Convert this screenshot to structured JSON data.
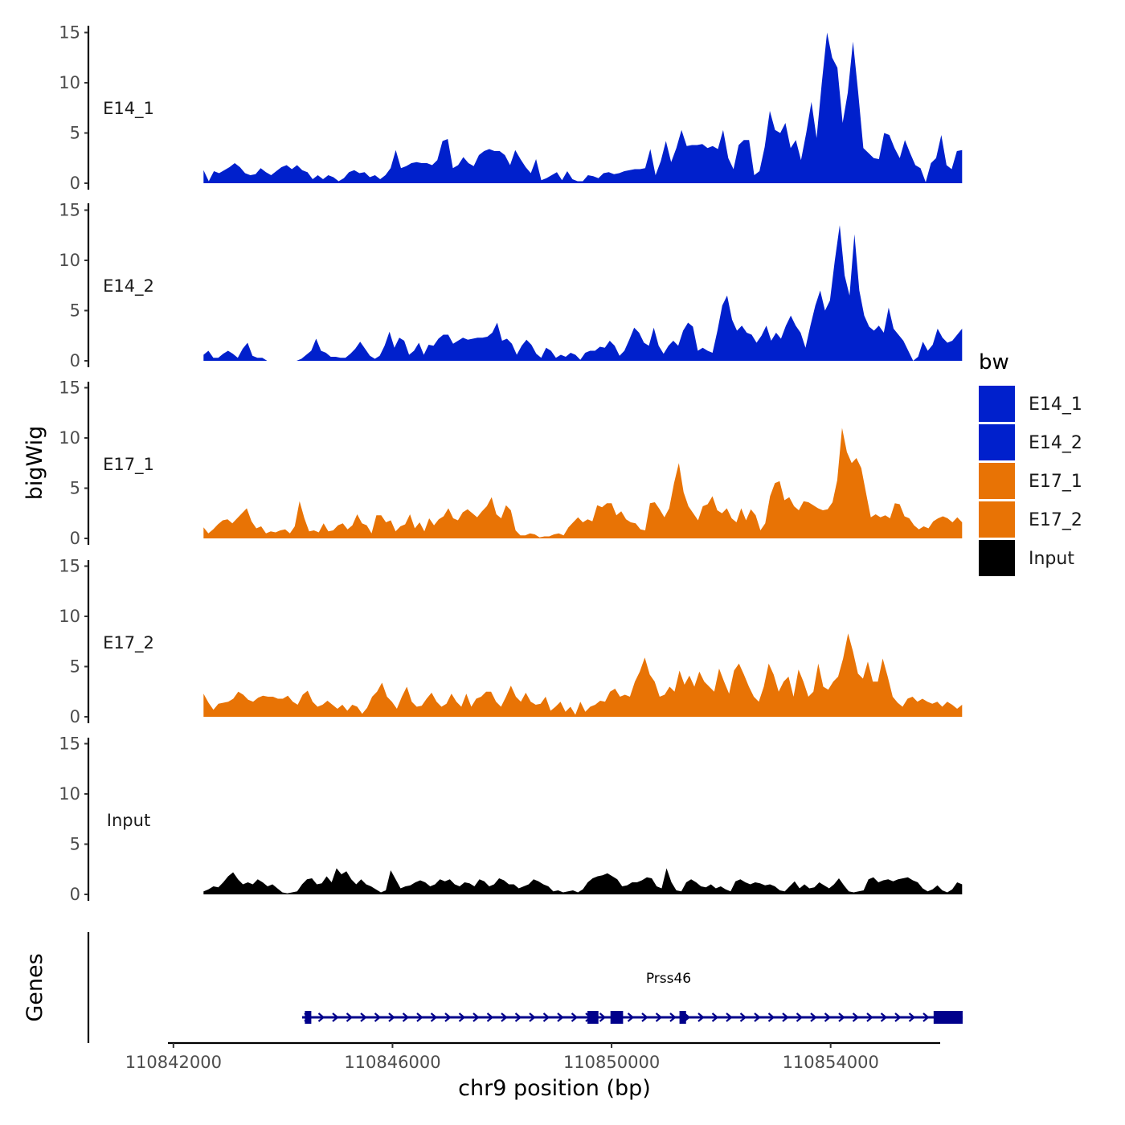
{
  "chart_data": {
    "type": "area",
    "title": "",
    "xlabel": "chr9 position (bp)",
    "ylabel": "bigWig",
    "gene_track_label": "Genes",
    "xlim": [
      110841900,
      110856000
    ],
    "data_range": [
      110842550,
      110856400
    ],
    "ylim": [
      0,
      15
    ],
    "yticks": [
      0,
      5,
      10,
      15
    ],
    "xticks": [
      110842000,
      110846000,
      110850000,
      110854000
    ],
    "legend": {
      "title": "bw",
      "position": "right",
      "entries": [
        {
          "name": "E14_1",
          "color": "#0020CC"
        },
        {
          "name": "E14_2",
          "color": "#0020CC"
        },
        {
          "name": "E17_1",
          "color": "#E87305"
        },
        {
          "name": "E17_2",
          "color": "#E87305"
        },
        {
          "name": "Input",
          "color": "#000000"
        }
      ]
    },
    "series": [
      {
        "name": "E14_1",
        "color": "#0020CC",
        "values": [
          1.3,
          0.2,
          1.2,
          1.0,
          1.3,
          1.6,
          2.0,
          1.6,
          1.0,
          0.8,
          0.9,
          1.5,
          1.1,
          0.8,
          1.2,
          1.6,
          1.8,
          1.4,
          1.8,
          1.3,
          1.1,
          0.4,
          0.8,
          0.4,
          0.8,
          0.6,
          0.2,
          0.5,
          1.1,
          1.3,
          1.0,
          1.1,
          0.6,
          0.8,
          0.4,
          0.8,
          1.5,
          3.3,
          1.5,
          1.7,
          2.0,
          2.1,
          2.0,
          2.0,
          1.8,
          2.3,
          4.2,
          4.4,
          1.5,
          1.8,
          2.6,
          2.0,
          1.7,
          2.8,
          3.2,
          3.4,
          3.2,
          3.2,
          2.8,
          1.8,
          3.3,
          2.4,
          1.6,
          1.0,
          2.4,
          0.3,
          0.5,
          0.8,
          1.1,
          0.3,
          1.2,
          0.4,
          0.2,
          0.2,
          0.8,
          0.7,
          0.5,
          1.0,
          1.1,
          0.9,
          1.0,
          1.2,
          1.3,
          1.4,
          1.4,
          1.5,
          3.4,
          0.8,
          2.2,
          4.2,
          2.1,
          3.5,
          5.3,
          3.7,
          3.8,
          3.8,
          3.9,
          3.5,
          3.7,
          3.4,
          5.3,
          2.5,
          1.4,
          3.8,
          4.3,
          4.3,
          0.8,
          1.2,
          3.6,
          7.2,
          5.3,
          5.0,
          6.0,
          3.5,
          4.3,
          2.3,
          5.0,
          8.1,
          4.5,
          10.0,
          15.0,
          12.5,
          11.5,
          6.0,
          9.0,
          14.1,
          9.0,
          3.5,
          3.0,
          2.5,
          2.4,
          5.0,
          4.8,
          3.5,
          2.5,
          4.3,
          3.0,
          1.8,
          1.5,
          0.1,
          2.0,
          2.5,
          4.8,
          1.8,
          1.4,
          3.2,
          3.3
        ]
      },
      {
        "name": "E14_2",
        "color": "#0020CC",
        "values": [
          0.6,
          1.0,
          0.3,
          0.3,
          0.7,
          1.0,
          0.7,
          0.3,
          1.2,
          1.8,
          0.5,
          0.3,
          0.3,
          0,
          0,
          0,
          0,
          0,
          0,
          0,
          0.2,
          0.6,
          1.0,
          2.2,
          1.0,
          0.8,
          0.4,
          0.4,
          0.3,
          0.3,
          0.7,
          1.2,
          1.9,
          1.2,
          0.5,
          0.2,
          0.5,
          1.5,
          2.9,
          1.3,
          2.3,
          2.0,
          0.6,
          1.0,
          1.8,
          0.6,
          1.6,
          1.5,
          2.2,
          2.6,
          2.6,
          1.7,
          2.0,
          2.3,
          2.1,
          2.2,
          2.3,
          2.3,
          2.4,
          2.8,
          3.8,
          2.0,
          2.2,
          1.7,
          0.6,
          1.5,
          2.1,
          1.6,
          0.7,
          0.3,
          1.3,
          1.0,
          0.3,
          0.6,
          0.4,
          0.8,
          0.6,
          0.1,
          0.8,
          1.0,
          1.0,
          1.4,
          1.3,
          2.0,
          1.5,
          0.5,
          1.0,
          2.1,
          3.3,
          2.8,
          1.8,
          1.5,
          3.3,
          1.5,
          0.7,
          1.5,
          2.0,
          1.5,
          3.0,
          3.8,
          3.4,
          1.0,
          1.3,
          1.0,
          0.8,
          3.0,
          5.5,
          6.5,
          4.1,
          3.0,
          3.5,
          2.8,
          2.6,
          1.8,
          2.5,
          3.5,
          2.0,
          2.8,
          2.2,
          3.5,
          4.5,
          3.5,
          2.8,
          1.3,
          3.5,
          5.5,
          7.0,
          5.0,
          6.0,
          10.0,
          13.5,
          8.5,
          6.5,
          12.6,
          7.0,
          4.5,
          3.4,
          3.0,
          3.5,
          2.8,
          5.3,
          3.2,
          2.6,
          2.0,
          1.0,
          0,
          0.4,
          1.9,
          1.0,
          1.6,
          3.2,
          2.3,
          1.8,
          2.0,
          2.6,
          3.2
        ]
      },
      {
        "name": "E17_1",
        "color": "#E87305",
        "values": [
          1.1,
          0.5,
          0.9,
          1.4,
          1.8,
          1.9,
          1.5,
          2.0,
          2.5,
          3.0,
          1.7,
          1.0,
          1.2,
          0.5,
          0.7,
          0.6,
          0.8,
          0.9,
          0.5,
          1.2,
          3.7,
          2.0,
          0.7,
          0.8,
          0.6,
          1.5,
          0.7,
          0.8,
          1.3,
          1.5,
          0.9,
          1.3,
          2.4,
          1.5,
          1.3,
          0.5,
          2.3,
          2.3,
          1.6,
          1.8,
          0.7,
          1.2,
          1.4,
          2.4,
          1.0,
          1.6,
          0.7,
          2.0,
          1.3,
          1.9,
          2.2,
          3.0,
          2.0,
          1.8,
          2.6,
          2.9,
          2.5,
          2.1,
          2.7,
          3.2,
          4.1,
          2.4,
          2.0,
          3.3,
          2.8,
          0.8,
          0.3,
          0.3,
          0.5,
          0.4,
          0.1,
          0.2,
          0.2,
          0.4,
          0.5,
          0.3,
          1.1,
          1.6,
          2.1,
          1.6,
          1.9,
          1.7,
          3.3,
          3.1,
          3.5,
          3.5,
          2.3,
          2.7,
          1.9,
          1.6,
          1.5,
          0.9,
          0.8,
          3.5,
          3.6,
          2.9,
          2.1,
          3.0,
          5.5,
          7.5,
          4.6,
          3.2,
          2.5,
          1.8,
          3.2,
          3.4,
          4.2,
          2.8,
          2.5,
          3.0,
          2.0,
          1.6,
          3.0,
          1.8,
          2.9,
          2.3,
          0.8,
          1.5,
          4.2,
          5.5,
          5.7,
          3.8,
          4.1,
          3.2,
          2.8,
          3.7,
          3.6,
          3.3,
          3.0,
          2.8,
          2.9,
          3.6,
          5.8,
          11.0,
          8.6,
          7.5,
          8.0,
          7.0,
          4.5,
          2.1,
          2.4,
          2.1,
          2.3,
          2.0,
          3.5,
          3.4,
          2.2,
          2.0,
          1.3,
          0.9,
          1.2,
          1.0,
          1.7,
          2.0,
          2.2,
          2.0,
          1.6,
          2.1,
          1.6
        ]
      },
      {
        "name": "E17_2",
        "color": "#E87305",
        "values": [
          2.3,
          1.4,
          0.7,
          1.3,
          1.4,
          1.5,
          1.8,
          2.5,
          2.2,
          1.7,
          1.5,
          1.9,
          2.1,
          2.0,
          2.0,
          1.8,
          1.8,
          2.1,
          1.5,
          1.2,
          2.2,
          2.6,
          1.5,
          1.0,
          1.2,
          1.6,
          1.2,
          0.8,
          1.2,
          0.6,
          1.2,
          1.0,
          0.3,
          0.9,
          2.0,
          2.5,
          3.4,
          2.0,
          1.5,
          0.8,
          2.0,
          3.0,
          1.5,
          1.0,
          1.1,
          1.8,
          2.4,
          1.5,
          1.0,
          1.3,
          2.3,
          1.5,
          1.0,
          2.3,
          1.0,
          1.8,
          2.0,
          2.5,
          2.5,
          1.5,
          1.0,
          2.0,
          3.1,
          2.0,
          1.5,
          2.4,
          1.5,
          1.2,
          1.3,
          2.0,
          0.6,
          1.0,
          1.5,
          0.5,
          1.0,
          0.2,
          1.5,
          0.5,
          1.0,
          1.2,
          1.6,
          1.5,
          2.5,
          2.8,
          2.0,
          2.2,
          2.0,
          3.5,
          4.5,
          5.9,
          4.2,
          3.5,
          2.0,
          2.2,
          3.0,
          2.5,
          4.6,
          3.2,
          4.1,
          3.0,
          4.5,
          3.5,
          3.0,
          2.5,
          4.8,
          3.5,
          2.3,
          4.6,
          5.3,
          4.2,
          3.0,
          2.0,
          1.5,
          3.0,
          5.3,
          4.2,
          2.5,
          3.5,
          4.0,
          2.0,
          4.7,
          3.5,
          2.0,
          2.5,
          5.3,
          3.0,
          2.7,
          3.5,
          4.0,
          5.8,
          8.3,
          6.5,
          4.3,
          3.8,
          5.5,
          3.5,
          3.5,
          5.8,
          4.0,
          2.0,
          1.4,
          1.0,
          1.8,
          2.0,
          1.5,
          1.8,
          1.5,
          1.3,
          1.5,
          1.0,
          1.5,
          1.2,
          0.8,
          1.2
        ]
      },
      {
        "name": "Input",
        "color": "#000000",
        "values": [
          0.3,
          0.5,
          0.8,
          0.7,
          1.2,
          1.8,
          2.2,
          1.5,
          1.0,
          1.2,
          1.0,
          1.5,
          1.2,
          0.8,
          1.0,
          0.6,
          0.2,
          0.1,
          0.2,
          0.3,
          1.0,
          1.5,
          1.6,
          1.0,
          1.1,
          1.8,
          1.2,
          2.6,
          2.0,
          2.3,
          1.5,
          1.0,
          1.5,
          1.0,
          0.8,
          0.5,
          0.2,
          0.4,
          2.4,
          1.5,
          0.6,
          0.8,
          0.9,
          1.2,
          1.4,
          1.2,
          0.8,
          1.0,
          1.5,
          1.3,
          1.5,
          1.0,
          0.8,
          1.2,
          1.1,
          0.8,
          1.5,
          1.3,
          0.8,
          1.0,
          1.6,
          1.4,
          1.0,
          1.0,
          0.6,
          0.8,
          1.0,
          1.5,
          1.3,
          1.0,
          0.8,
          0.3,
          0.4,
          0.2,
          0.3,
          0.4,
          0.2,
          0.5,
          1.2,
          1.6,
          1.8,
          1.9,
          2.1,
          1.8,
          1.5,
          0.8,
          0.9,
          1.2,
          1.2,
          1.4,
          1.7,
          1.6,
          0.8,
          0.6,
          2.6,
          1.2,
          0.4,
          0.3,
          1.2,
          1.5,
          1.2,
          0.8,
          0.7,
          1.0,
          0.6,
          0.8,
          0.5,
          0.3,
          1.3,
          1.5,
          1.2,
          1.0,
          1.2,
          1.1,
          0.9,
          1.0,
          0.8,
          0.4,
          0.3,
          0.8,
          1.3,
          0.6,
          1.0,
          0.6,
          0.7,
          1.2,
          0.9,
          0.6,
          1.0,
          1.6,
          0.9,
          0.3,
          0.2,
          0.3,
          0.4,
          1.5,
          1.7,
          1.2,
          1.4,
          1.5,
          1.3,
          1.5,
          1.6,
          1.7,
          1.4,
          1.2,
          0.6,
          0.3,
          0.5,
          0.9,
          0.4,
          0.2,
          0.5,
          1.2,
          1.0
        ]
      }
    ],
    "genes": [
      {
        "name": "Prss46",
        "strand": "+",
        "start": 110844350,
        "end": 110856410,
        "exons": [
          [
            110844400,
            110844500
          ],
          [
            110849560,
            110849760
          ],
          [
            110849980,
            110850210
          ],
          [
            110851240,
            110851360
          ],
          [
            110855880,
            110856410
          ]
        ]
      }
    ]
  }
}
